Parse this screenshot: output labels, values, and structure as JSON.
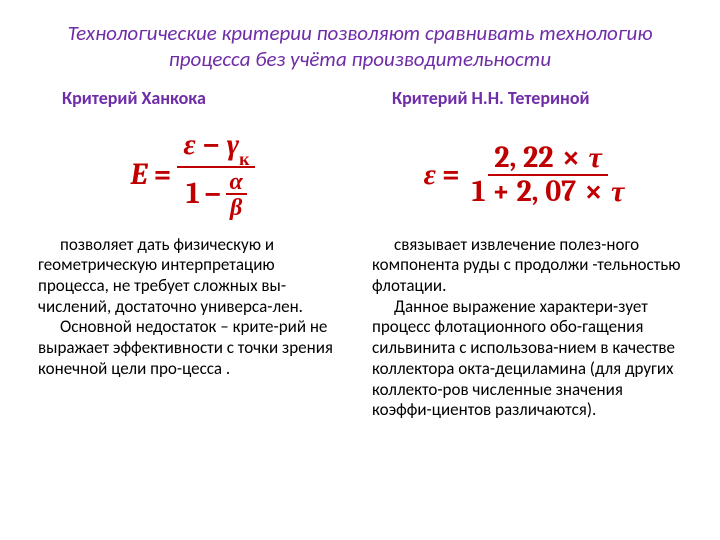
{
  "title_color": "#6f2da8",
  "subtitle_color": "#6f2da8",
  "formula_color": "#c00000",
  "text_color": "#000000",
  "title": "Технологические критерии позволяют сравнивать технологию процесса без учёта производительности",
  "left": {
    "subtitle": "Критерий Ханкока",
    "formula": {
      "lhs": "E",
      "eq": "=",
      "num_a": "ε",
      "num_minus": "−",
      "num_b": "γ",
      "num_b_sub": "к",
      "den_a": "1",
      "den_minus": "−",
      "den_frac_n": "α",
      "den_frac_d": "β"
    },
    "p1": "позволяет дать физическую и геометрическую интерпретацию процесса, не требует сложных вы-числений, достаточно универса-лен.",
    "p2": "Основной недостаток – крите-рий не выражает эффективности с точки зрения конечной цели про-цесса ."
  },
  "right": {
    "subtitle": "Критерий Н.Н. Тетериной",
    "formula": {
      "lhs": "ε",
      "eq": "=",
      "num_a": "2, 22",
      "times": "×",
      "num_b": "τ",
      "den_a": "1",
      "den_plus": "+",
      "den_b": "2, 07",
      "den_c": "τ"
    },
    "p1": "связывает  извлечение полез-ного компонента руды с продолжи -тельностью флотации.",
    "p2": "Данное выражение характери-зует процесс флотационного обо-гащения сильвинита с использова-нием в качестве коллектора окта-дециламина (для других коллекто-ров численные значения коэффи-циентов различаются)."
  }
}
